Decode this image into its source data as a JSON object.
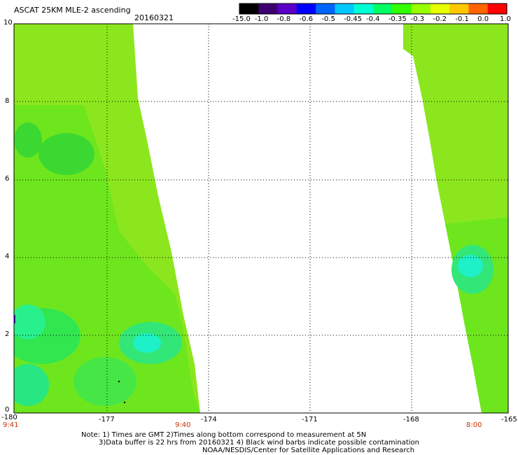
{
  "header": {
    "title": "ASCAT 25KM MLE-2 ascending",
    "date": "20160321"
  },
  "colorbar": {
    "labels": [
      "-15.0",
      "-1.0",
      "-0.8",
      "-0.6",
      "-0.5",
      "-0.45",
      "-0.4",
      "-0.35",
      "-0.3",
      "-0.2",
      "-0.1",
      "0.0",
      "1.0"
    ],
    "colors": [
      "#000000",
      "#3c0070",
      "#5a00c8",
      "#0000ff",
      "#0064ff",
      "#00c8ff",
      "#00ffd2",
      "#00ff64",
      "#32ff00",
      "#96ff00",
      "#e6ff00",
      "#ffc800",
      "#ff6400",
      "#ff0000"
    ]
  },
  "axes": {
    "y_labels": [
      "10",
      "8",
      "6",
      "4",
      "2",
      "0"
    ],
    "x_labels": [
      "-180",
      "-177",
      "-174",
      "-171",
      "-168",
      "-165"
    ],
    "times": [
      "9:41",
      "9:40",
      "8:00"
    ]
  },
  "notes": {
    "line1": "Note: 1) Times are GMT 2)Times along bottom correspond to measurement at 5N",
    "line2": "3)Data buffer is 22 hrs from 20160321 4) Black wind barbs indicate possible contamination",
    "line3": "NOAA/NESDIS/Center for Satellite Applications and Research"
  }
}
